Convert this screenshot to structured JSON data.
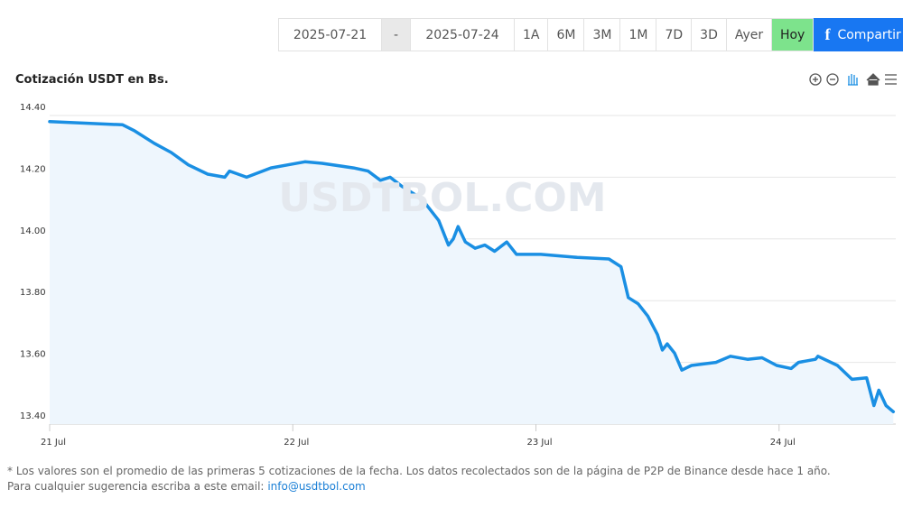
{
  "toolbar": {
    "date_from": "2025-07-21",
    "separator": "-",
    "date_to": "2025-07-24",
    "ranges": [
      "1A",
      "6M",
      "3M",
      "1M",
      "7D",
      "3D",
      "Ayer"
    ],
    "today": "Hoy",
    "share": "Compartir"
  },
  "chart_data": {
    "type": "line",
    "title": "Cotización USDT en Bs.",
    "watermark": "USDTBOL.COM",
    "x": [
      21.0,
      21.3,
      21.35,
      21.43,
      21.5,
      21.57,
      21.65,
      21.72,
      21.74,
      21.81,
      21.91,
      21.98,
      22.05,
      22.12,
      22.25,
      22.31,
      22.36,
      22.4,
      22.45,
      22.53,
      22.6,
      22.64,
      22.66,
      22.68,
      22.71,
      22.75,
      22.79,
      22.83,
      22.88,
      22.92,
      23.02,
      23.17,
      23.3,
      23.35,
      23.38,
      23.42,
      23.46,
      23.5,
      23.52,
      23.54,
      23.57,
      23.6,
      23.64,
      23.74,
      23.8,
      23.87,
      23.93,
      23.99,
      24.05,
      24.08,
      24.15,
      24.16,
      24.24,
      24.3,
      24.36,
      24.39,
      24.41,
      24.44,
      24.47
    ],
    "values": [
      14.38,
      14.37,
      14.35,
      14.31,
      14.28,
      14.24,
      14.21,
      14.2,
      14.22,
      14.2,
      14.23,
      14.24,
      14.25,
      14.245,
      14.23,
      14.22,
      14.19,
      14.2,
      14.17,
      14.13,
      14.06,
      13.98,
      14.0,
      14.04,
      13.99,
      13.97,
      13.98,
      13.96,
      13.99,
      13.95,
      13.95,
      13.94,
      13.935,
      13.91,
      13.81,
      13.79,
      13.75,
      13.69,
      13.64,
      13.66,
      13.63,
      13.575,
      13.59,
      13.6,
      13.62,
      13.61,
      13.615,
      13.59,
      13.58,
      13.6,
      13.61,
      13.62,
      13.59,
      13.545,
      13.55,
      13.46,
      13.51,
      13.46,
      13.44
    ],
    "color": "#1a8fe3",
    "area_color": "#eef6fd",
    "xlim": [
      21,
      24.48
    ],
    "xticks": [
      {
        "value": 21,
        "label": "21 Jul"
      },
      {
        "value": 22,
        "label": "22 Jul"
      },
      {
        "value": 23,
        "label": "23 Jul"
      },
      {
        "value": 24,
        "label": "24 Jul"
      }
    ],
    "ylim": [
      13.4,
      14.4
    ],
    "yticks": [
      {
        "value": 13.4,
        "label": "13.40"
      },
      {
        "value": 13.6,
        "label": "13.60"
      },
      {
        "value": 13.8,
        "label": "13.80"
      },
      {
        "value": 14.0,
        "label": "14.00"
      },
      {
        "value": 14.2,
        "label": "14.20"
      },
      {
        "value": 14.4,
        "label": "14.40"
      }
    ],
    "grid": true
  },
  "footnote": {
    "lines": [
      "* Los valores son el promedio de las primeras 5 cotizaciones de la fecha. Los datos recolectados son de la página de P2P de Binance desde hace 1 año.",
      "Para cualquier sugerencia escriba a este email:"
    ],
    "email": "info@usdtbol.com"
  }
}
